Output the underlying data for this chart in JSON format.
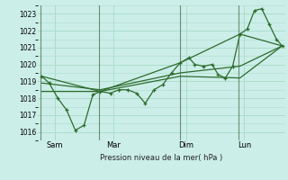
{
  "xlabel": "Pression niveau de la mer( hPa )",
  "background_color": "#cceee8",
  "grid_color": "#aaddcc",
  "line_color": "#2d6b2d",
  "vline_color": "#446644",
  "ylim": [
    1015.5,
    1023.5
  ],
  "yticks": [
    1016,
    1017,
    1018,
    1019,
    1020,
    1021,
    1022,
    1023
  ],
  "day_labels": [
    "Sam",
    "Mar",
    "Dim",
    "Lun"
  ],
  "day_positions": [
    0.5,
    2.5,
    5.0,
    7.0
  ],
  "vline_positions": [
    0.0,
    2.0,
    4.8,
    6.8
  ],
  "xlim": [
    -0.1,
    8.4
  ],
  "series1_x": [
    0.05,
    0.3,
    0.6,
    0.9,
    1.2,
    1.5,
    1.8,
    2.05,
    2.4,
    2.7,
    3.0,
    3.3,
    3.6,
    3.9,
    4.2,
    4.5,
    4.8,
    5.1,
    5.3,
    5.6,
    5.9,
    6.1,
    6.35,
    6.6,
    6.85,
    7.1,
    7.35,
    7.6,
    7.85,
    8.1,
    8.3
  ],
  "series1_y": [
    1019.3,
    1018.9,
    1018.0,
    1017.3,
    1016.1,
    1016.4,
    1018.2,
    1018.4,
    1018.3,
    1018.5,
    1018.5,
    1018.3,
    1017.7,
    1018.5,
    1018.8,
    1019.5,
    1020.1,
    1020.4,
    1020.0,
    1019.9,
    1020.0,
    1019.4,
    1019.2,
    1019.9,
    1021.8,
    1022.1,
    1023.2,
    1023.3,
    1022.4,
    1021.5,
    1021.1
  ],
  "series2_x": [
    0.05,
    2.05,
    4.8,
    6.85,
    8.3
  ],
  "series2_y": [
    1019.3,
    1018.4,
    1020.1,
    1021.8,
    1021.1
  ],
  "series3_x": [
    0.05,
    2.05,
    4.8,
    6.85,
    8.3
  ],
  "series3_y": [
    1018.4,
    1018.4,
    1019.3,
    1019.2,
    1021.1
  ],
  "series4_x": [
    0.05,
    2.05,
    4.8,
    6.85,
    8.3
  ],
  "series4_y": [
    1018.9,
    1018.5,
    1019.5,
    1019.9,
    1021.1
  ]
}
